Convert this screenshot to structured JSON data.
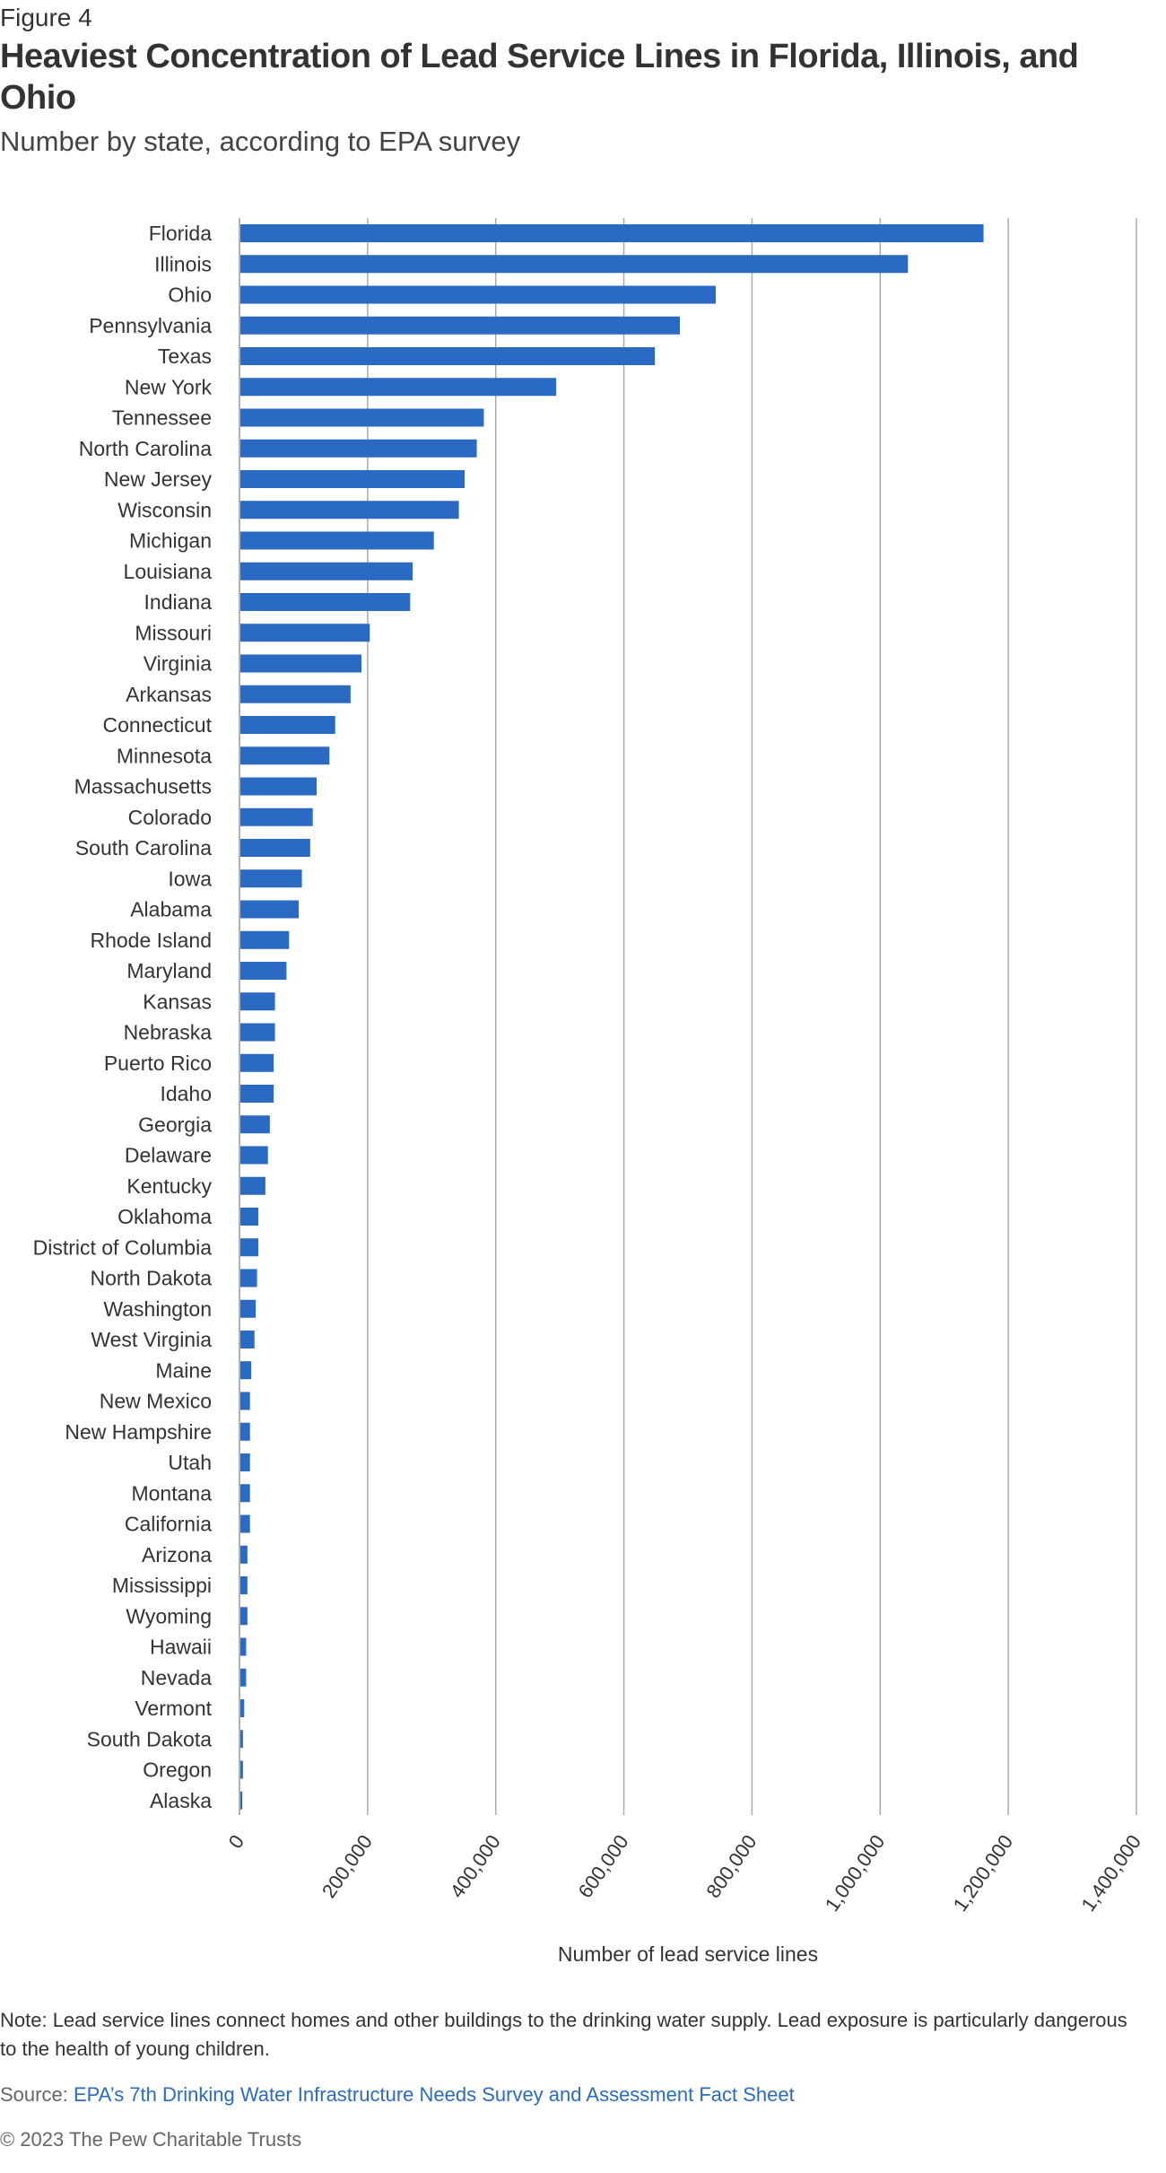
{
  "header": {
    "figure_label": "Figure 4",
    "title": "Heaviest Concentration of Lead Service Lines in Florida, Illinois, and Ohio",
    "subtitle": "Number by state, according to EPA survey"
  },
  "chart_data": {
    "type": "bar",
    "orientation": "horizontal",
    "title": "Heaviest Concentration of Lead Service Lines in Florida, Illinois, and Ohio",
    "xlabel": "Number of lead service lines",
    "ylabel": "",
    "xlim": [
      0,
      1400000
    ],
    "xticks": [
      0,
      200000,
      400000,
      600000,
      800000,
      1000000,
      1200000,
      1400000
    ],
    "xtick_labels": [
      "0",
      "200,000",
      "400,000",
      "600,000",
      "800,000",
      "1,000,000",
      "1,200,000",
      "1,400,000"
    ],
    "grid": true,
    "bar_color": "#2a6ac2",
    "categories": [
      "Florida",
      "Illinois",
      "Ohio",
      "Pennsylvania",
      "Texas",
      "New York",
      "Tennessee",
      "North Carolina",
      "New Jersey",
      "Wisconsin",
      "Michigan",
      "Louisiana",
      "Indiana",
      "Missouri",
      "Virginia",
      "Arkansas",
      "Connecticut",
      "Minnesota",
      "Massachusetts",
      "Colorado",
      "South Carolina",
      "Iowa",
      "Alabama",
      "Rhode Island",
      "Maryland",
      "Kansas",
      "Nebraska",
      "Puerto Rico",
      "Idaho",
      "Georgia",
      "Delaware",
      "Kentucky",
      "Oklahoma",
      "District of Columbia",
      "North Dakota",
      "Washington",
      "West Virginia",
      "Maine",
      "New Mexico",
      "New Hampshire",
      "Utah",
      "Montana",
      "California",
      "Arizona",
      "Mississippi",
      "Wyoming",
      "Hawaii",
      "Nevada",
      "Vermont",
      "South Dakota",
      "Oregon",
      "Alaska"
    ],
    "values": [
      1160000,
      1042000,
      742000,
      686000,
      647000,
      493000,
      380000,
      369000,
      350000,
      341000,
      302000,
      269000,
      265000,
      202000,
      189000,
      172000,
      148000,
      139000,
      119000,
      113000,
      109000,
      96000,
      91000,
      76000,
      72000,
      54000,
      54000,
      52000,
      52000,
      46000,
      43000,
      39000,
      28000,
      28000,
      26000,
      24000,
      22000,
      17000,
      15000,
      15000,
      15000,
      15000,
      15000,
      11000,
      11000,
      11000,
      9000,
      9000,
      6000,
      4000,
      4000,
      3000
    ]
  },
  "footer": {
    "note": "Note: Lead service lines connect homes and other buildings to the drinking water supply. Lead exposure is particularly dangerous to the health of young children.",
    "source_label": "Source:",
    "source_link": "EPA’s 7th Drinking Water Infrastructure Needs Survey and Assessment Fact Sheet",
    "copyright": "© 2023 The Pew Charitable Trusts"
  }
}
